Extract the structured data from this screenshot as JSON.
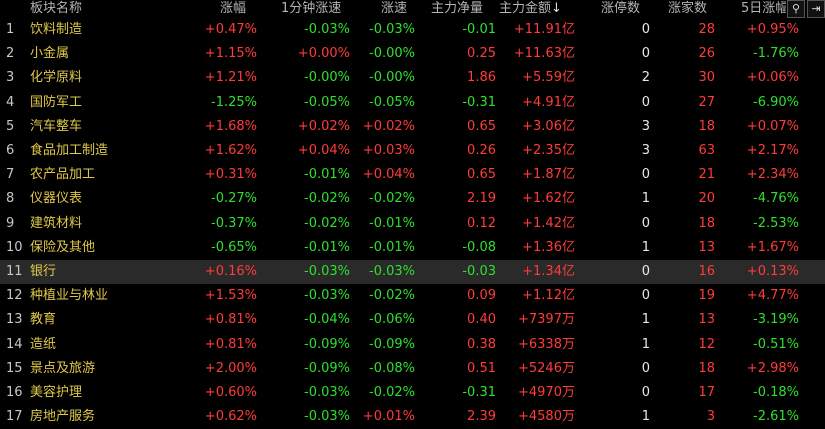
{
  "header": {
    "name": "板块名称",
    "change": "涨幅",
    "speed1m": "1分钟涨速",
    "speed": "涨速",
    "net": "主力净量",
    "amount": "主力金额",
    "limitup": "涨停数",
    "upcount": "涨家数",
    "five_day": "5日涨幅",
    "sort_indicator": "↓",
    "search_icon_glyph": "⚲",
    "exit_icon_glyph": "⇥"
  },
  "rows": [
    {
      "idx": "1",
      "name": "饮料制造",
      "change": "+0.47%",
      "speed1m": "-0.03%",
      "speed": "-0.03%",
      "net": "-0.01",
      "amount": "+11.91",
      "unit": "亿",
      "limitup": "0",
      "upcount": "28",
      "five_day": "+0.95%"
    },
    {
      "idx": "2",
      "name": "小金属",
      "change": "+1.15%",
      "speed1m": "+0.00%",
      "speed": "-0.00%",
      "net": "0.25",
      "amount": "+11.63",
      "unit": "亿",
      "limitup": "0",
      "upcount": "26",
      "five_day": "-1.76%"
    },
    {
      "idx": "3",
      "name": "化学原料",
      "change": "+1.21%",
      "speed1m": "-0.00%",
      "speed": "-0.00%",
      "net": "1.86",
      "amount": "+5.59",
      "unit": "亿",
      "limitup": "2",
      "upcount": "30",
      "five_day": "+0.06%"
    },
    {
      "idx": "4",
      "name": "国防军工",
      "change": "-1.25%",
      "speed1m": "-0.05%",
      "speed": "-0.05%",
      "net": "-0.31",
      "amount": "+4.91",
      "unit": "亿",
      "limitup": "0",
      "upcount": "27",
      "five_day": "-6.90%"
    },
    {
      "idx": "5",
      "name": "汽车整车",
      "change": "+1.68%",
      "speed1m": "+0.02%",
      "speed": "+0.02%",
      "net": "0.65",
      "amount": "+3.06",
      "unit": "亿",
      "limitup": "3",
      "upcount": "18",
      "five_day": "+0.07%"
    },
    {
      "idx": "6",
      "name": "食品加工制造",
      "change": "+1.62%",
      "speed1m": "+0.04%",
      "speed": "+0.03%",
      "net": "0.26",
      "amount": "+2.35",
      "unit": "亿",
      "limitup": "3",
      "upcount": "63",
      "five_day": "+2.17%"
    },
    {
      "idx": "7",
      "name": "农产品加工",
      "change": "+0.31%",
      "speed1m": "-0.01%",
      "speed": "+0.04%",
      "net": "0.65",
      "amount": "+1.87",
      "unit": "亿",
      "limitup": "0",
      "upcount": "21",
      "five_day": "+2.34%"
    },
    {
      "idx": "8",
      "name": "仪器仪表",
      "change": "-0.27%",
      "speed1m": "-0.02%",
      "speed": "-0.02%",
      "net": "2.19",
      "amount": "+1.62",
      "unit": "亿",
      "limitup": "1",
      "upcount": "20",
      "five_day": "-4.76%"
    },
    {
      "idx": "9",
      "name": "建筑材料",
      "change": "-0.37%",
      "speed1m": "-0.02%",
      "speed": "-0.01%",
      "net": "0.12",
      "amount": "+1.42",
      "unit": "亿",
      "limitup": "0",
      "upcount": "18",
      "five_day": "-2.53%"
    },
    {
      "idx": "10",
      "name": "保险及其他",
      "change": "-0.65%",
      "speed1m": "-0.01%",
      "speed": "-0.01%",
      "net": "-0.08",
      "amount": "+1.36",
      "unit": "亿",
      "limitup": "1",
      "upcount": "13",
      "five_day": "+1.67%"
    },
    {
      "idx": "11",
      "name": "银行",
      "change": "+0.16%",
      "speed1m": "-0.03%",
      "speed": "-0.03%",
      "net": "-0.03",
      "amount": "+1.34",
      "unit": "亿",
      "limitup": "0",
      "upcount": "16",
      "five_day": "+0.13%",
      "selected": true
    },
    {
      "idx": "12",
      "name": "种植业与林业",
      "change": "+1.53%",
      "speed1m": "-0.03%",
      "speed": "-0.02%",
      "net": "0.09",
      "amount": "+1.12",
      "unit": "亿",
      "limitup": "0",
      "upcount": "19",
      "five_day": "+4.77%"
    },
    {
      "idx": "13",
      "name": "教育",
      "change": "+0.81%",
      "speed1m": "-0.04%",
      "speed": "-0.06%",
      "net": "0.40",
      "amount": "+7397",
      "unit": "万",
      "limitup": "1",
      "upcount": "13",
      "five_day": "-3.19%"
    },
    {
      "idx": "14",
      "name": "造纸",
      "change": "+0.81%",
      "speed1m": "-0.09%",
      "speed": "-0.09%",
      "net": "0.38",
      "amount": "+6338",
      "unit": "万",
      "limitup": "1",
      "upcount": "12",
      "five_day": "-0.51%"
    },
    {
      "idx": "15",
      "name": "景点及旅游",
      "change": "+2.00%",
      "speed1m": "-0.09%",
      "speed": "-0.08%",
      "net": "0.51",
      "amount": "+5246",
      "unit": "万",
      "limitup": "0",
      "upcount": "18",
      "five_day": "+2.98%"
    },
    {
      "idx": "16",
      "name": "美容护理",
      "change": "+0.60%",
      "speed1m": "-0.03%",
      "speed": "-0.02%",
      "net": "-0.31",
      "amount": "+4970",
      "unit": "万",
      "limitup": "0",
      "upcount": "17",
      "five_day": "-0.18%"
    },
    {
      "idx": "17",
      "name": "房地产服务",
      "change": "+0.62%",
      "speed1m": "-0.03%",
      "speed": "+0.01%",
      "net": "2.39",
      "amount": "+4580",
      "unit": "万",
      "limitup": "1",
      "upcount": "3",
      "five_day": "-2.61%"
    }
  ]
}
